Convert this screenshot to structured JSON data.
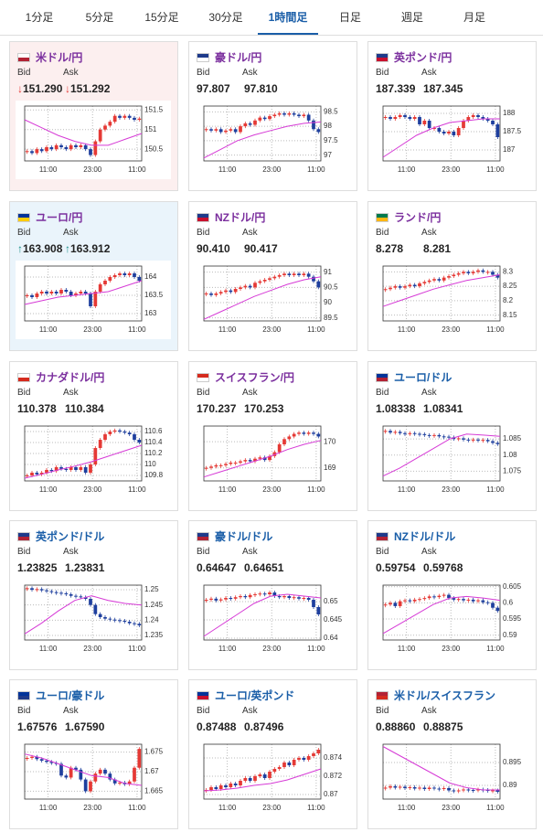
{
  "tabs": [
    "1分足",
    "5分足",
    "15分足",
    "30分足",
    "1時間足",
    "日足",
    "週足",
    "月足"
  ],
  "active_tab": 4,
  "labels": {
    "bid": "Bid",
    "ask": "Ask"
  },
  "chart_xticks": [
    "11:00",
    "23:00",
    "11:00"
  ],
  "cards": [
    {
      "name": "米ドル/円",
      "color": "#7b2f9e",
      "bid": "151.290",
      "ask": "151.292",
      "bid_arrow": "↓",
      "ask_arrow": "↓",
      "arrow_color": "#e53935",
      "bg": "#fcefef",
      "chart": {
        "ylim": [
          150.2,
          151.6
        ],
        "yticks": [
          150.5,
          151,
          151.5
        ],
        "values": [
          150.45,
          150.4,
          150.5,
          150.45,
          150.55,
          150.5,
          150.6,
          150.55,
          150.5,
          150.6,
          150.55,
          150.6,
          150.5,
          150.35,
          150.7,
          151.0,
          151.1,
          151.2,
          151.35,
          151.3,
          151.35,
          151.3,
          151.25,
          151.28
        ],
        "ma": [
          151.25,
          151.05,
          150.85,
          150.7,
          150.6,
          150.6,
          150.75,
          150.9
        ]
      }
    },
    {
      "name": "豪ドル/円",
      "color": "#7b2f9e",
      "bid": "97.807",
      "ask": "97.810",
      "chart": {
        "ylim": [
          96.8,
          98.7
        ],
        "yticks": [
          97,
          97.5,
          98,
          98.5
        ],
        "values": [
          97.9,
          97.85,
          97.9,
          97.8,
          97.85,
          97.9,
          97.8,
          98.0,
          98.1,
          98.05,
          98.2,
          98.3,
          98.25,
          98.35,
          98.4,
          98.45,
          98.4,
          98.45,
          98.4,
          98.35,
          98.4,
          98.2,
          97.9,
          97.8
        ],
        "ma": [
          96.9,
          97.2,
          97.5,
          97.7,
          97.85,
          98.0,
          98.1,
          98.15
        ]
      }
    },
    {
      "name": "英ポンド/円",
      "color": "#7b2f9e",
      "bid": "187.339",
      "ask": "187.345",
      "chart": {
        "ylim": [
          186.7,
          188.2
        ],
        "yticks": [
          187,
          187.5,
          188
        ],
        "values": [
          187.9,
          187.85,
          187.9,
          187.95,
          187.9,
          187.85,
          187.9,
          187.7,
          187.8,
          187.6,
          187.6,
          187.5,
          187.45,
          187.5,
          187.4,
          187.6,
          187.8,
          187.9,
          187.95,
          187.9,
          187.85,
          187.8,
          187.7,
          187.35
        ],
        "ma": [
          186.8,
          187.1,
          187.4,
          187.6,
          187.75,
          187.8,
          187.85,
          187.85
        ]
      }
    },
    {
      "name": "ユーロ/円",
      "color": "#7b2f9e",
      "bid": "163.908",
      "ask": "163.912",
      "bid_arrow": "↑",
      "ask_arrow": "↑",
      "arrow_color": "#1a8f8a",
      "bg": "#eaf4fb",
      "chart": {
        "ylim": [
          162.8,
          164.3
        ],
        "yticks": [
          163,
          163.5,
          164
        ],
        "values": [
          163.5,
          163.45,
          163.55,
          163.6,
          163.55,
          163.6,
          163.55,
          163.65,
          163.6,
          163.5,
          163.55,
          163.6,
          163.55,
          163.2,
          163.6,
          163.8,
          163.9,
          164.0,
          164.05,
          164.1,
          164.05,
          164.1,
          164.0,
          163.9
        ],
        "ma": [
          163.25,
          163.35,
          163.45,
          163.5,
          163.55,
          163.6,
          163.75,
          163.9
        ]
      }
    },
    {
      "name": "NZドル/円",
      "color": "#7b2f9e",
      "bid": "90.410",
      "ask": "90.417",
      "chart": {
        "ylim": [
          89.4,
          91.2
        ],
        "yticks": [
          89.5,
          90,
          90.5,
          91
        ],
        "values": [
          90.3,
          90.25,
          90.3,
          90.35,
          90.4,
          90.35,
          90.45,
          90.5,
          90.55,
          90.5,
          90.65,
          90.7,
          90.75,
          90.8,
          90.85,
          90.9,
          90.95,
          90.9,
          90.95,
          90.9,
          90.95,
          90.85,
          90.7,
          90.5
        ],
        "ma": [
          89.45,
          89.7,
          89.95,
          90.2,
          90.4,
          90.6,
          90.75,
          90.85
        ]
      }
    },
    {
      "name": "ランド/円",
      "color": "#7b2f9e",
      "bid": "8.278",
      "ask": "8.281",
      "chart": {
        "ylim": [
          8.13,
          8.32
        ],
        "yticks": [
          8.15,
          8.2,
          8.25,
          8.3
        ],
        "values": [
          8.24,
          8.245,
          8.25,
          8.245,
          8.25,
          8.255,
          8.25,
          8.26,
          8.265,
          8.27,
          8.275,
          8.27,
          8.28,
          8.285,
          8.29,
          8.295,
          8.3,
          8.295,
          8.3,
          8.305,
          8.3,
          8.3,
          8.29,
          8.28
        ],
        "ma": [
          8.18,
          8.2,
          8.22,
          8.24,
          8.255,
          8.27,
          8.28,
          8.29
        ]
      }
    },
    {
      "name": "カナダドル/円",
      "color": "#7b2f9e",
      "bid": "110.378",
      "ask": "110.384",
      "chart": {
        "ylim": [
          109.7,
          110.7
        ],
        "yticks": [
          109.8,
          110,
          110.2,
          110.4,
          110.6
        ],
        "values": [
          109.8,
          109.85,
          109.82,
          109.85,
          109.9,
          109.88,
          109.95,
          109.92,
          109.9,
          109.95,
          109.9,
          109.95,
          109.85,
          110.0,
          110.3,
          110.45,
          110.55,
          110.6,
          110.62,
          110.6,
          110.58,
          110.55,
          110.45,
          110.4
        ],
        "ma": [
          109.75,
          109.82,
          109.9,
          109.97,
          110.05,
          110.15,
          110.25,
          110.35
        ]
      }
    },
    {
      "name": "スイスフラン/円",
      "color": "#7b2f9e",
      "bid": "170.237",
      "ask": "170.253",
      "chart": {
        "ylim": [
          168.5,
          170.6
        ],
        "yticks": [
          169,
          170
        ],
        "values": [
          169.0,
          169.05,
          169.1,
          169.1,
          169.15,
          169.2,
          169.2,
          169.25,
          169.3,
          169.25,
          169.35,
          169.4,
          169.3,
          169.45,
          169.6,
          169.9,
          170.1,
          170.2,
          170.3,
          170.35,
          170.3,
          170.35,
          170.3,
          170.2
        ],
        "ma": [
          168.65,
          168.85,
          169.05,
          169.25,
          169.45,
          169.7,
          169.9,
          170.05
        ]
      }
    },
    {
      "name": "ユーロ/ドル",
      "color": "#1a5ea8",
      "bid": "1.08338",
      "ask": "1.08341",
      "chart": {
        "ylim": [
          1.072,
          1.089
        ],
        "yticks": [
          1.075,
          1.08,
          1.085
        ],
        "values": [
          1.0875,
          1.087,
          1.0872,
          1.0868,
          1.0865,
          1.0868,
          1.0866,
          1.0865,
          1.0862,
          1.086,
          1.0862,
          1.0858,
          1.0857,
          1.0855,
          1.085,
          1.0852,
          1.0848,
          1.0846,
          1.0848,
          1.0845,
          1.0847,
          1.0843,
          1.0838,
          1.0834
        ],
        "ma": [
          1.0735,
          1.076,
          1.079,
          1.082,
          1.085,
          1.0865,
          1.0862,
          1.0858
        ]
      }
    },
    {
      "name": "英ポンド/ドル",
      "color": "#1a5ea8",
      "bid": "1.23825",
      "ask": "1.23831",
      "chart": {
        "ylim": [
          1.2335,
          1.2515
        ],
        "yticks": [
          1.235,
          1.24,
          1.245,
          1.25
        ],
        "values": [
          1.2505,
          1.25,
          1.2502,
          1.2498,
          1.2495,
          1.2492,
          1.249,
          1.2488,
          1.2485,
          1.248,
          1.2478,
          1.2475,
          1.247,
          1.245,
          1.242,
          1.241,
          1.2405,
          1.2402,
          1.24,
          1.2398,
          1.2395,
          1.239,
          1.2388,
          1.2383
        ],
        "ma": [
          1.2355,
          1.239,
          1.243,
          1.2465,
          1.248,
          1.2465,
          1.2455,
          1.245
        ]
      }
    },
    {
      "name": "豪ドル/ドル",
      "color": "#1a5ea8",
      "bid": "0.64647",
      "ask": "0.64651",
      "chart": {
        "ylim": [
          0.6395,
          0.6545
        ],
        "yticks": [
          0.64,
          0.645,
          0.65
        ],
        "values": [
          0.6505,
          0.6508,
          0.6503,
          0.6506,
          0.651,
          0.6508,
          0.6512,
          0.6515,
          0.6512,
          0.6518,
          0.652,
          0.6522,
          0.652,
          0.6525,
          0.6515,
          0.6512,
          0.6515,
          0.651,
          0.6512,
          0.6508,
          0.651,
          0.6505,
          0.6485,
          0.6465
        ],
        "ma": [
          0.6405,
          0.6435,
          0.6465,
          0.6495,
          0.6515,
          0.652,
          0.6515,
          0.651
        ]
      }
    },
    {
      "name": "NZドル/ドル",
      "color": "#1a5ea8",
      "bid": "0.59754",
      "ask": "0.59768",
      "chart": {
        "ylim": [
          0.5885,
          0.6055
        ],
        "yticks": [
          0.59,
          0.595,
          0.6,
          0.605
        ],
        "values": [
          0.5995,
          0.6,
          0.599,
          0.6005,
          0.6008,
          0.6005,
          0.601,
          0.6012,
          0.6015,
          0.602,
          0.6018,
          0.6022,
          0.6025,
          0.6015,
          0.601,
          0.6012,
          0.6008,
          0.601,
          0.6005,
          0.6008,
          0.6002,
          0.6,
          0.5985,
          0.5975
        ],
        "ma": [
          0.5905,
          0.5935,
          0.5965,
          0.5995,
          0.6015,
          0.602,
          0.6015,
          0.6008
        ]
      }
    },
    {
      "name": "ユーロ/豪ドル",
      "color": "#1a5ea8",
      "bid": "1.67576",
      "ask": "1.67590",
      "chart": {
        "ylim": [
          1.663,
          1.677
        ],
        "yticks": [
          1.665,
          1.67,
          1.675
        ],
        "values": [
          1.6735,
          1.6738,
          1.6732,
          1.6728,
          1.6725,
          1.6722,
          1.672,
          1.669,
          1.6685,
          1.671,
          1.6705,
          1.668,
          1.665,
          1.6675,
          1.6695,
          1.6705,
          1.6695,
          1.668,
          1.667,
          1.6672,
          1.6668,
          1.6675,
          1.671,
          1.6758
        ],
        "ma": [
          1.6745,
          1.6735,
          1.672,
          1.6705,
          1.669,
          1.6685,
          1.667,
          1.6665
        ]
      }
    },
    {
      "name": "ユーロ/英ポンド",
      "color": "#1a5ea8",
      "bid": "0.87488",
      "ask": "0.87496",
      "chart": {
        "ylim": [
          0.8695,
          0.8755
        ],
        "yticks": [
          0.87,
          0.872,
          0.874
        ],
        "values": [
          0.8705,
          0.8708,
          0.8706,
          0.871,
          0.8708,
          0.8712,
          0.871,
          0.8715,
          0.8718,
          0.8715,
          0.872,
          0.8722,
          0.8718,
          0.8725,
          0.8728,
          0.873,
          0.8735,
          0.8732,
          0.8738,
          0.874,
          0.8738,
          0.8742,
          0.8745,
          0.8749
        ],
        "ma": [
          0.8704,
          0.8705,
          0.8707,
          0.871,
          0.8712,
          0.8716,
          0.8722,
          0.8728
        ]
      }
    },
    {
      "name": "米ドル/スイスフラン",
      "color": "#1a5ea8",
      "bid": "0.88860",
      "ask": "0.88875",
      "chart": {
        "ylim": [
          0.887,
          0.899
        ],
        "yticks": [
          0.89,
          0.895
        ],
        "values": [
          0.8895,
          0.8898,
          0.8895,
          0.8897,
          0.8894,
          0.8896,
          0.8893,
          0.8895,
          0.8892,
          0.8895,
          0.8893,
          0.8892,
          0.8894,
          0.8889,
          0.8887,
          0.8889,
          0.8891,
          0.889,
          0.8889,
          0.8891,
          0.889,
          0.8888,
          0.8889,
          0.8886
        ],
        "ma": [
          0.8985,
          0.8965,
          0.8945,
          0.8925,
          0.8905,
          0.8895,
          0.889,
          0.889
        ]
      }
    }
  ]
}
